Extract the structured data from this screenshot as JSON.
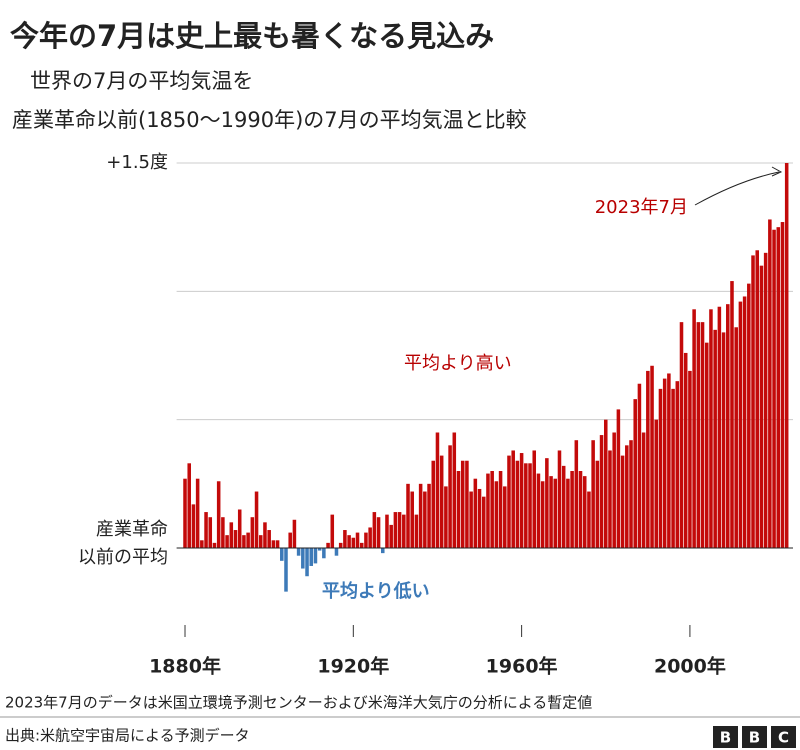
{
  "chart_data": {
    "type": "bar",
    "title": "今年の7月は史上最も暑くなる見込み",
    "subtitle": [
      "世界の7月の平均気温を",
      "産業革命以前(1850〜1990年)の7月の平均気温と比較"
    ],
    "x": [
      1880,
      1881,
      1882,
      1883,
      1884,
      1885,
      1886,
      1887,
      1888,
      1889,
      1890,
      1891,
      1892,
      1893,
      1894,
      1895,
      1896,
      1897,
      1898,
      1899,
      1900,
      1901,
      1902,
      1903,
      1904,
      1905,
      1906,
      1907,
      1908,
      1909,
      1910,
      1911,
      1912,
      1913,
      1914,
      1915,
      1916,
      1917,
      1918,
      1919,
      1920,
      1921,
      1922,
      1923,
      1924,
      1925,
      1926,
      1927,
      1928,
      1929,
      1930,
      1931,
      1932,
      1933,
      1934,
      1935,
      1936,
      1937,
      1938,
      1939,
      1940,
      1941,
      1942,
      1943,
      1944,
      1945,
      1946,
      1947,
      1948,
      1949,
      1950,
      1951,
      1952,
      1953,
      1954,
      1955,
      1956,
      1957,
      1958,
      1959,
      1960,
      1961,
      1962,
      1963,
      1964,
      1965,
      1966,
      1967,
      1968,
      1969,
      1970,
      1971,
      1972,
      1973,
      1974,
      1975,
      1976,
      1977,
      1978,
      1979,
      1980,
      1981,
      1982,
      1983,
      1984,
      1985,
      1986,
      1987,
      1988,
      1989,
      1990,
      1991,
      1992,
      1993,
      1994,
      1995,
      1996,
      1997,
      1998,
      1999,
      2000,
      2001,
      2002,
      2003,
      2004,
      2005,
      2006,
      2007,
      2008,
      2009,
      2010,
      2011,
      2012,
      2013,
      2014,
      2015,
      2016,
      2017,
      2018,
      2019,
      2020,
      2021,
      2022,
      2023
    ],
    "values": [
      0.27,
      0.33,
      0.17,
      0.27,
      0.03,
      0.14,
      0.12,
      0.02,
      0.26,
      0.12,
      0.05,
      0.1,
      0.07,
      0.15,
      0.05,
      0.06,
      0.12,
      0.22,
      0.05,
      0.1,
      0.07,
      0.03,
      0.03,
      -0.05,
      -0.17,
      0.06,
      0.11,
      -0.03,
      -0.08,
      -0.11,
      -0.07,
      -0.06,
      -0.01,
      -0.04,
      0.02,
      0.13,
      -0.03,
      0.02,
      0.07,
      0.05,
      0.04,
      0.06,
      0.02,
      0.06,
      0.08,
      0.14,
      0.12,
      -0.02,
      0.13,
      0.09,
      0.14,
      0.14,
      0.13,
      0.25,
      0.22,
      0.13,
      0.25,
      0.22,
      0.25,
      0.34,
      0.45,
      0.36,
      0.24,
      0.4,
      0.45,
      0.3,
      0.34,
      0.34,
      0.22,
      0.27,
      0.23,
      0.2,
      0.29,
      0.3,
      0.26,
      0.3,
      0.24,
      0.36,
      0.38,
      0.34,
      0.37,
      0.33,
      0.33,
      0.38,
      0.29,
      0.26,
      0.35,
      0.28,
      0.27,
      0.38,
      0.32,
      0.27,
      0.3,
      0.42,
      0.3,
      0.28,
      0.22,
      0.42,
      0.34,
      0.44,
      0.5,
      0.38,
      0.45,
      0.54,
      0.36,
      0.4,
      0.42,
      0.58,
      0.64,
      0.45,
      0.69,
      0.71,
      0.5,
      0.62,
      0.66,
      0.68,
      0.62,
      0.65,
      0.88,
      0.76,
      0.69,
      0.93,
      0.88,
      0.88,
      0.8,
      0.93,
      0.85,
      0.94,
      0.84,
      0.95,
      1.04,
      0.86,
      0.96,
      0.98,
      1.03,
      1.14,
      1.16,
      1.1,
      1.15,
      1.28,
      1.24,
      1.25,
      1.27,
      1.5
    ],
    "positive_color": "#c30a0a",
    "negative_color": "#3d7ab8",
    "xlim": [
      1878,
      2024.5
    ],
    "xticks": [
      {
        "value": 1880,
        "label": "1880年"
      },
      {
        "value": 1920,
        "label": "1920年"
      },
      {
        "value": 1960,
        "label": "1960年"
      },
      {
        "value": 2000,
        "label": "2000年"
      }
    ],
    "ylim": [
      -0.3,
      1.5
    ],
    "yticks": [
      {
        "value": 0,
        "label": [
          "産業革命",
          "以前の平均"
        ]
      },
      {
        "value": 1.5,
        "label": "+1.5度"
      }
    ],
    "grid_lines": [
      0.5,
      1.0,
      1.5
    ],
    "annotations": {
      "latest": "2023年7月",
      "above": "平均より高い",
      "below": "平均より低い"
    },
    "note": "2023年7月のデータは米国立環境予測センターおよび米海洋大気庁の分析による暫定値",
    "source": "出典:米航空宇宙局による予測データ",
    "logo": [
      "B",
      "B",
      "C"
    ]
  }
}
